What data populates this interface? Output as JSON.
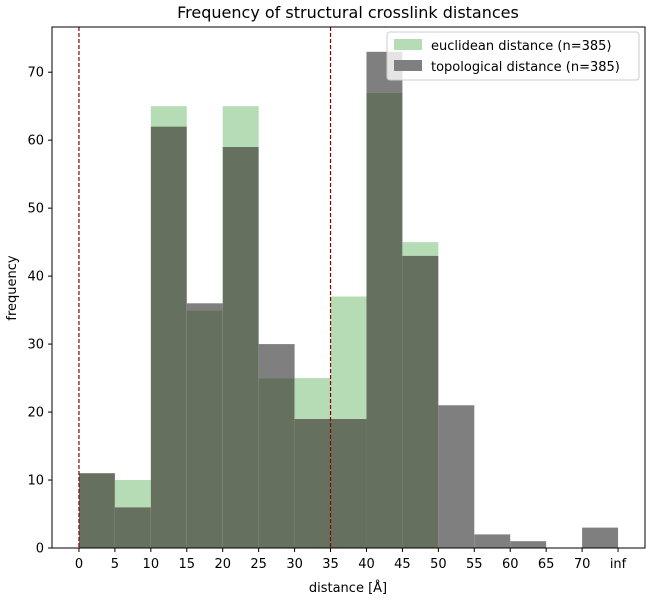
{
  "chart_data": {
    "type": "bar",
    "title": "Frequency of structural crosslink distances",
    "xlabel": "distance [Å]",
    "ylabel": "frequency",
    "x_ticks": [
      "0",
      "5",
      "10",
      "15",
      "20",
      "25",
      "30",
      "35",
      "40",
      "45",
      "50",
      "55",
      "60",
      "65",
      "70",
      "inf"
    ],
    "y_ticks": [
      0,
      10,
      20,
      30,
      40,
      50,
      60,
      70
    ],
    "xlim": [
      -3.75,
      78.75
    ],
    "ylim": [
      0,
      76.65
    ],
    "bin_edges": [
      0,
      5,
      10,
      15,
      20,
      25,
      30,
      35,
      40,
      45,
      50,
      55,
      60,
      65,
      70,
      75
    ],
    "reference_lines": [
      0,
      35
    ],
    "reference_line_color": "#8b0000",
    "grid": false,
    "legend_position": "top-right",
    "series": [
      {
        "name": "euclidean distance (n=385)",
        "color": "#b5dcb5",
        "values": [
          11,
          10,
          65,
          35,
          65,
          25,
          25,
          37,
          67,
          45,
          0,
          0,
          0,
          0,
          0
        ]
      },
      {
        "name": "topological distance (n=385)",
        "color": "#7f7f7f",
        "overlap_color": "#66705f",
        "values": [
          11,
          6,
          62,
          36,
          59,
          30,
          19,
          19,
          73,
          43,
          21,
          2,
          1,
          0,
          3
        ]
      }
    ]
  }
}
